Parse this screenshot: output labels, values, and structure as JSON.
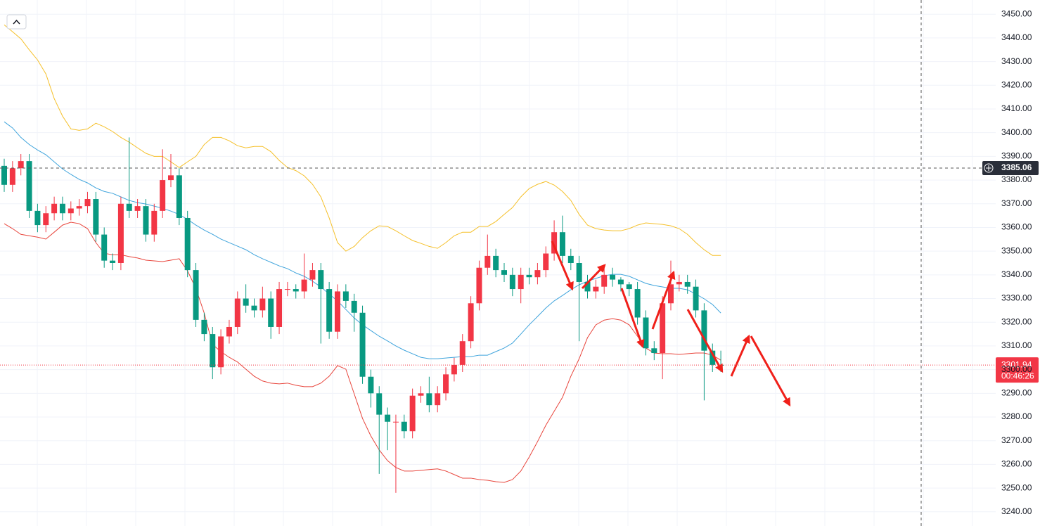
{
  "chart_data": {
    "type": "candlestick",
    "up_color": "#f23645",
    "down_color": "#089981",
    "open": [
      3386,
      3378,
      3385,
      3388,
      3367,
      3361,
      3366,
      3370,
      3366,
      3368,
      3369,
      3372,
      3357,
      3346,
      3345,
      3370,
      3367,
      3369,
      3357,
      3367,
      3380,
      3382,
      3364,
      3342,
      3321,
      3315,
      3301,
      3314,
      3318,
      3330,
      3327,
      3325,
      3330,
      3318,
      3334,
      3334,
      3333,
      3338,
      3342,
      3334,
      3316,
      3333,
      3329,
      3324,
      3297,
      3290,
      3281,
      3278,
      3278,
      3274,
      3289,
      3290,
      3285,
      3290,
      3298,
      3302,
      3312,
      3328,
      3343,
      3348,
      3342,
      3340,
      3334,
      3340,
      3339,
      3342,
      3349,
      3358,
      3348,
      3345,
      3337,
      3333,
      3335,
      3340,
      3338,
      3336,
      3334,
      3322,
      3309,
      3307,
      3328,
      3336,
      3337,
      3335,
      3325,
      3308,
      3302
    ],
    "high": [
      3389,
      3388,
      3391,
      3391,
      3370,
      3369,
      3373,
      3373,
      3371,
      3372,
      3375,
      3375,
      3360,
      3349,
      3373,
      3398,
      3372,
      3372,
      3370,
      3393,
      3391,
      3385,
      3367,
      3345,
      3324,
      3318,
      3317,
      3321,
      3333,
      3336,
      3330,
      3335,
      3333,
      3337,
      3337,
      3336,
      3349,
      3345,
      3345,
      3337,
      3336,
      3336,
      3332,
      3327,
      3300,
      3293,
      3284,
      3281,
      3281,
      3292,
      3293,
      3297,
      3293,
      3301,
      3305,
      3315,
      3331,
      3346,
      3357,
      3351,
      3345,
      3343,
      3343,
      3343,
      3345,
      3352,
      3363,
      3365,
      3351,
      3348,
      3340,
      3338,
      3343,
      3343,
      3339,
      3337,
      3337,
      3325,
      3312,
      3331,
      3346,
      3340,
      3340,
      3338,
      3328,
      3311,
      3308
    ],
    "low": [
      3375,
      3375,
      3382,
      3364,
      3358,
      3358,
      3363,
      3363,
      3363,
      3365,
      3366,
      3354,
      3343,
      3342,
      3342,
      3364,
      3364,
      3354,
      3354,
      3364,
      3377,
      3361,
      3339,
      3318,
      3312,
      3296,
      3298,
      3311,
      3315,
      3324,
      3322,
      3322,
      3313,
      3315,
      3331,
      3330,
      3330,
      3335,
      3311,
      3313,
      3313,
      3326,
      3316,
      3294,
      3284,
      3256,
      3266,
      3248,
      3271,
      3271,
      3286,
      3282,
      3282,
      3287,
      3295,
      3299,
      3309,
      3325,
      3340,
      3339,
      3337,
      3331,
      3328,
      3336,
      3336,
      3339,
      3346,
      3345,
      3342,
      3312,
      3330,
      3330,
      3332,
      3335,
      3333,
      3331,
      3319,
      3306,
      3304,
      3296,
      3325,
      3333,
      3332,
      3322,
      3287,
      3299,
      3299
    ],
    "close": [
      3378,
      3385,
      3388,
      3367,
      3361,
      3366,
      3370,
      3366,
      3368,
      3369,
      3372,
      3357,
      3346,
      3345,
      3370,
      3367,
      3369,
      3357,
      3367,
      3380,
      3382,
      3364,
      3342,
      3321,
      3315,
      3301,
      3314,
      3318,
      3330,
      3327,
      3325,
      3330,
      3318,
      3334,
      3334,
      3333,
      3338,
      3342,
      3334,
      3316,
      3333,
      3329,
      3324,
      3297,
      3290,
      3281,
      3278,
      3278,
      3274,
      3289,
      3290,
      3285,
      3290,
      3298,
      3302,
      3312,
      3328,
      3343,
      3348,
      3342,
      3340,
      3334,
      3340,
      3339,
      3342,
      3349,
      3358,
      3348,
      3345,
      3337,
      3333,
      3335,
      3340,
      3338,
      3336,
      3334,
      3322,
      3309,
      3307,
      3328,
      3336,
      3337,
      3335,
      3325,
      3308,
      3302,
      3301.94
    ],
    "bands": [
      {
        "color": "#f5c02a",
        "values": [
          3445.5,
          3442.6,
          3439.6,
          3435,
          3430.7,
          3424.8,
          3414.4,
          3407,
          3401.6,
          3401,
          3401.6,
          3404,
          3402.5,
          3400.5,
          3398,
          3396,
          3393.6,
          3391.3,
          3390,
          3390,
          3387.7,
          3385.3,
          3387.7,
          3390,
          3395,
          3398,
          3398,
          3396.6,
          3394.5,
          3393.6,
          3394.2,
          3394.2,
          3392,
          3388.3,
          3385.3,
          3384,
          3381.8,
          3378.2,
          3372.9,
          3364,
          3353.6,
          3350,
          3352,
          3355.7,
          3358.6,
          3360.7,
          3360.4,
          3358.6,
          3356.5,
          3354.5,
          3353.3,
          3352,
          3351.2,
          3353.6,
          3356.5,
          3358,
          3358,
          3360.4,
          3360.4,
          3362.5,
          3365.5,
          3368.4,
          3372.9,
          3376.4,
          3378.2,
          3379.4,
          3377.9,
          3375.2,
          3371.4,
          3365.5,
          3361,
          3359.5,
          3358.9,
          3358.6,
          3358.6,
          3359.5,
          3361,
          3361.9,
          3361.6,
          3361.3,
          3360.7,
          3359.5,
          3357.1,
          3353.6,
          3350.6,
          3348.2,
          3348.2
        ]
      },
      {
        "color": "#3fa4dc",
        "values": [
          3404.6,
          3402,
          3398,
          3395,
          3392.7,
          3390.7,
          3387.7,
          3384.7,
          3382.4,
          3380.3,
          3378.8,
          3376.7,
          3375.2,
          3374.4,
          3372.9,
          3371.4,
          3370.5,
          3369.9,
          3369,
          3368.1,
          3366.9,
          3365.5,
          3363.4,
          3361,
          3358.9,
          3357.1,
          3355.1,
          3353.6,
          3352.1,
          3350.6,
          3348.5,
          3346.8,
          3345.3,
          3343.8,
          3342.6,
          3340.8,
          3339.4,
          3337.3,
          3334.9,
          3331.9,
          3329,
          3325.4,
          3321.8,
          3318.9,
          3316.5,
          3314.1,
          3312.1,
          3310,
          3308.2,
          3306.7,
          3305.2,
          3304.6,
          3304.6,
          3304.9,
          3305.2,
          3305.5,
          3305.5,
          3306.1,
          3306.1,
          3307.6,
          3309.1,
          3311.2,
          3315,
          3318.9,
          3322.4,
          3326,
          3329,
          3331.3,
          3333.7,
          3335.8,
          3337.3,
          3338.5,
          3339.6,
          3340.2,
          3340.2,
          3339.4,
          3337.9,
          3336.4,
          3335.5,
          3334.9,
          3334.3,
          3334.3,
          3333.7,
          3331.9,
          3329.9,
          3327.5,
          3323.9
        ]
      },
      {
        "color": "#e8453c",
        "values": [
          3361.6,
          3359.5,
          3357.1,
          3356.5,
          3355.9,
          3355.1,
          3358,
          3361,
          3362.2,
          3361.6,
          3359.5,
          3353.6,
          3349.1,
          3348.5,
          3348.5,
          3347.7,
          3347.1,
          3346.2,
          3345.9,
          3345.6,
          3346.2,
          3346.8,
          3341.7,
          3334.3,
          3323.9,
          3310.6,
          3307.6,
          3305.2,
          3303.2,
          3300.2,
          3297.2,
          3295.2,
          3294.3,
          3294,
          3294.3,
          3293.4,
          3292.8,
          3292.8,
          3294.3,
          3297.2,
          3301.7,
          3300.2,
          3289.8,
          3279.4,
          3272,
          3266.1,
          3261.6,
          3258.7,
          3257.2,
          3257.2,
          3257.5,
          3257.8,
          3258.1,
          3257.2,
          3255.7,
          3254.2,
          3254.2,
          3253.6,
          3253.3,
          3252.7,
          3252.4,
          3253.6,
          3257.2,
          3263.1,
          3269.6,
          3276.5,
          3282.4,
          3288.3,
          3297.2,
          3304.6,
          3313.5,
          3318.9,
          3320.9,
          3321.5,
          3320.9,
          3318.9,
          3314.1,
          3309.1,
          3307,
          3306.7,
          3306.7,
          3306.4,
          3306.7,
          3307,
          3307,
          3306.1,
          3304
        ]
      }
    ],
    "ylim": [
      3234,
      3456
    ],
    "yticks": [
      {
        "value": 3240,
        "label": "3240.00"
      },
      {
        "value": 3250,
        "label": "3250.00"
      },
      {
        "value": 3260,
        "label": "3260.00"
      },
      {
        "value": 3270,
        "label": "3270.00"
      },
      {
        "value": 3280,
        "label": "3280.00"
      },
      {
        "value": 3290,
        "label": "3290.00"
      },
      {
        "value": 3300,
        "label": "3300.00"
      },
      {
        "value": 3310,
        "label": "3310.00"
      },
      {
        "value": 3320,
        "label": "3320.00"
      },
      {
        "value": 3330,
        "label": "3330.00"
      },
      {
        "value": 3340,
        "label": "3340.00"
      },
      {
        "value": 3350,
        "label": "3350.00"
      },
      {
        "value": 3360,
        "label": "3360.00"
      },
      {
        "value": 3370,
        "label": "3370.00"
      },
      {
        "value": 3380,
        "label": "3380.00"
      },
      {
        "value": 3390,
        "label": "3390.00"
      },
      {
        "value": 3400,
        "label": "3400.00"
      },
      {
        "value": 3410,
        "label": "3410.00"
      },
      {
        "value": 3420,
        "label": "3420.00"
      },
      {
        "value": 3430,
        "label": "3430.00"
      },
      {
        "value": 3440,
        "label": "3440.00"
      },
      {
        "value": 3450,
        "label": "3450.00"
      }
    ],
    "grid": true,
    "last_price": 3301.94,
    "countdown": "00:46:26",
    "crosshair_price": 3385.06
  }
}
